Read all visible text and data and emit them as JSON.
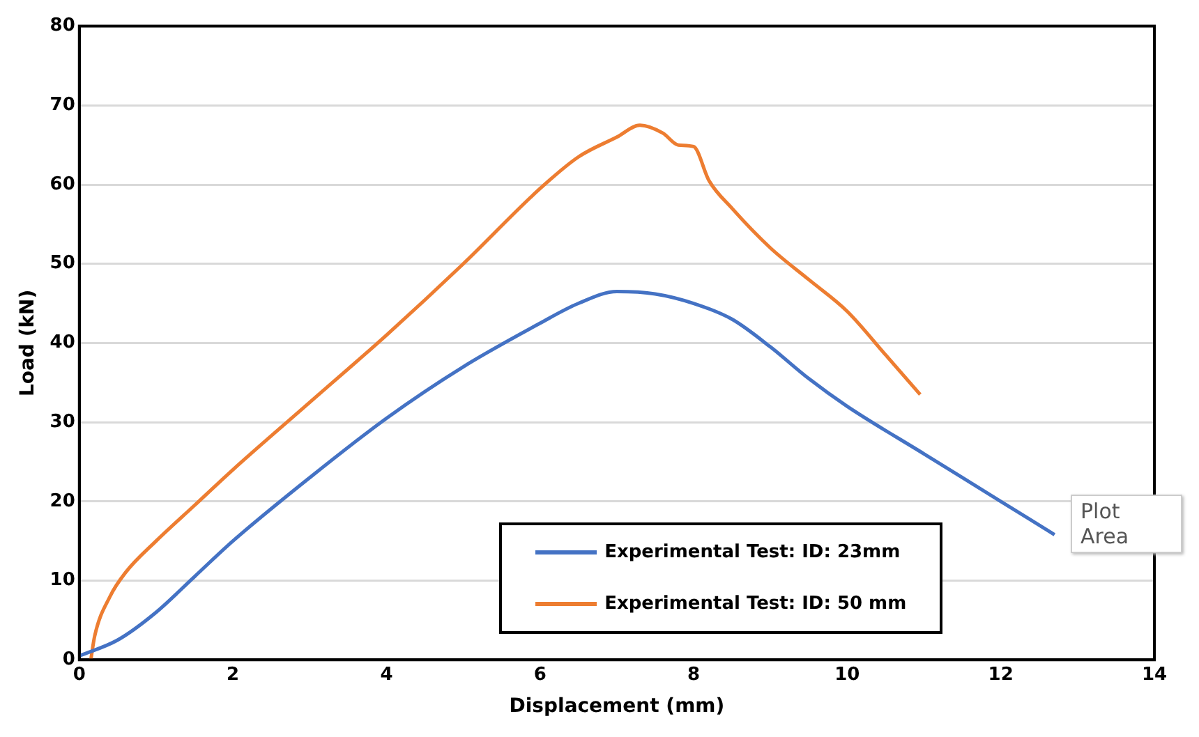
{
  "chart_data": {
    "type": "line",
    "xlabel": "Displacement (mm)",
    "ylabel": "Load (kN)",
    "xlim": [
      0,
      14
    ],
    "xticks": [
      0,
      2,
      4,
      6,
      8,
      10,
      12,
      14
    ],
    "ylim": [
      0,
      80
    ],
    "yticks": [
      0,
      10,
      20,
      30,
      40,
      50,
      60,
      70,
      80
    ],
    "grid": "y",
    "legend": "bottom",
    "marker": "none",
    "line_style": "solid",
    "annotations": [
      "Plot Area"
    ],
    "series": [
      {
        "name": "Experimental Test: ID: 23mm",
        "color": "#4472c4",
        "x": [
          0,
          0.5,
          1,
          1.5,
          2,
          3,
          4,
          5,
          6,
          6.5,
          7,
          7.5,
          8,
          8.5,
          9,
          9.5,
          10,
          11,
          12,
          12.7
        ],
        "values": [
          0.5,
          2.5,
          6,
          10.5,
          15,
          23,
          30.5,
          37,
          42.5,
          45,
          46.5,
          46.2,
          45,
          43,
          39.5,
          35.5,
          32,
          26,
          20,
          15.8
        ]
      },
      {
        "name": "Experimental Test: ID: 50 mm",
        "color": "#ed7d31",
        "x": [
          0.15,
          0.2,
          0.4,
          0.6,
          1,
          1.5,
          2,
          3,
          4,
          5,
          6,
          6.5,
          7,
          7.3,
          7.6,
          7.8,
          8,
          8.2,
          8.5,
          9,
          9.5,
          10,
          10.5,
          10.95
        ],
        "values": [
          0,
          3,
          8,
          11,
          15,
          19.5,
          24,
          32.5,
          41,
          50,
          59.5,
          63.5,
          66,
          67.5,
          66.5,
          65,
          64.8,
          60.5,
          57,
          52,
          48,
          44,
          38.5,
          33.5
        ]
      }
    ]
  }
}
